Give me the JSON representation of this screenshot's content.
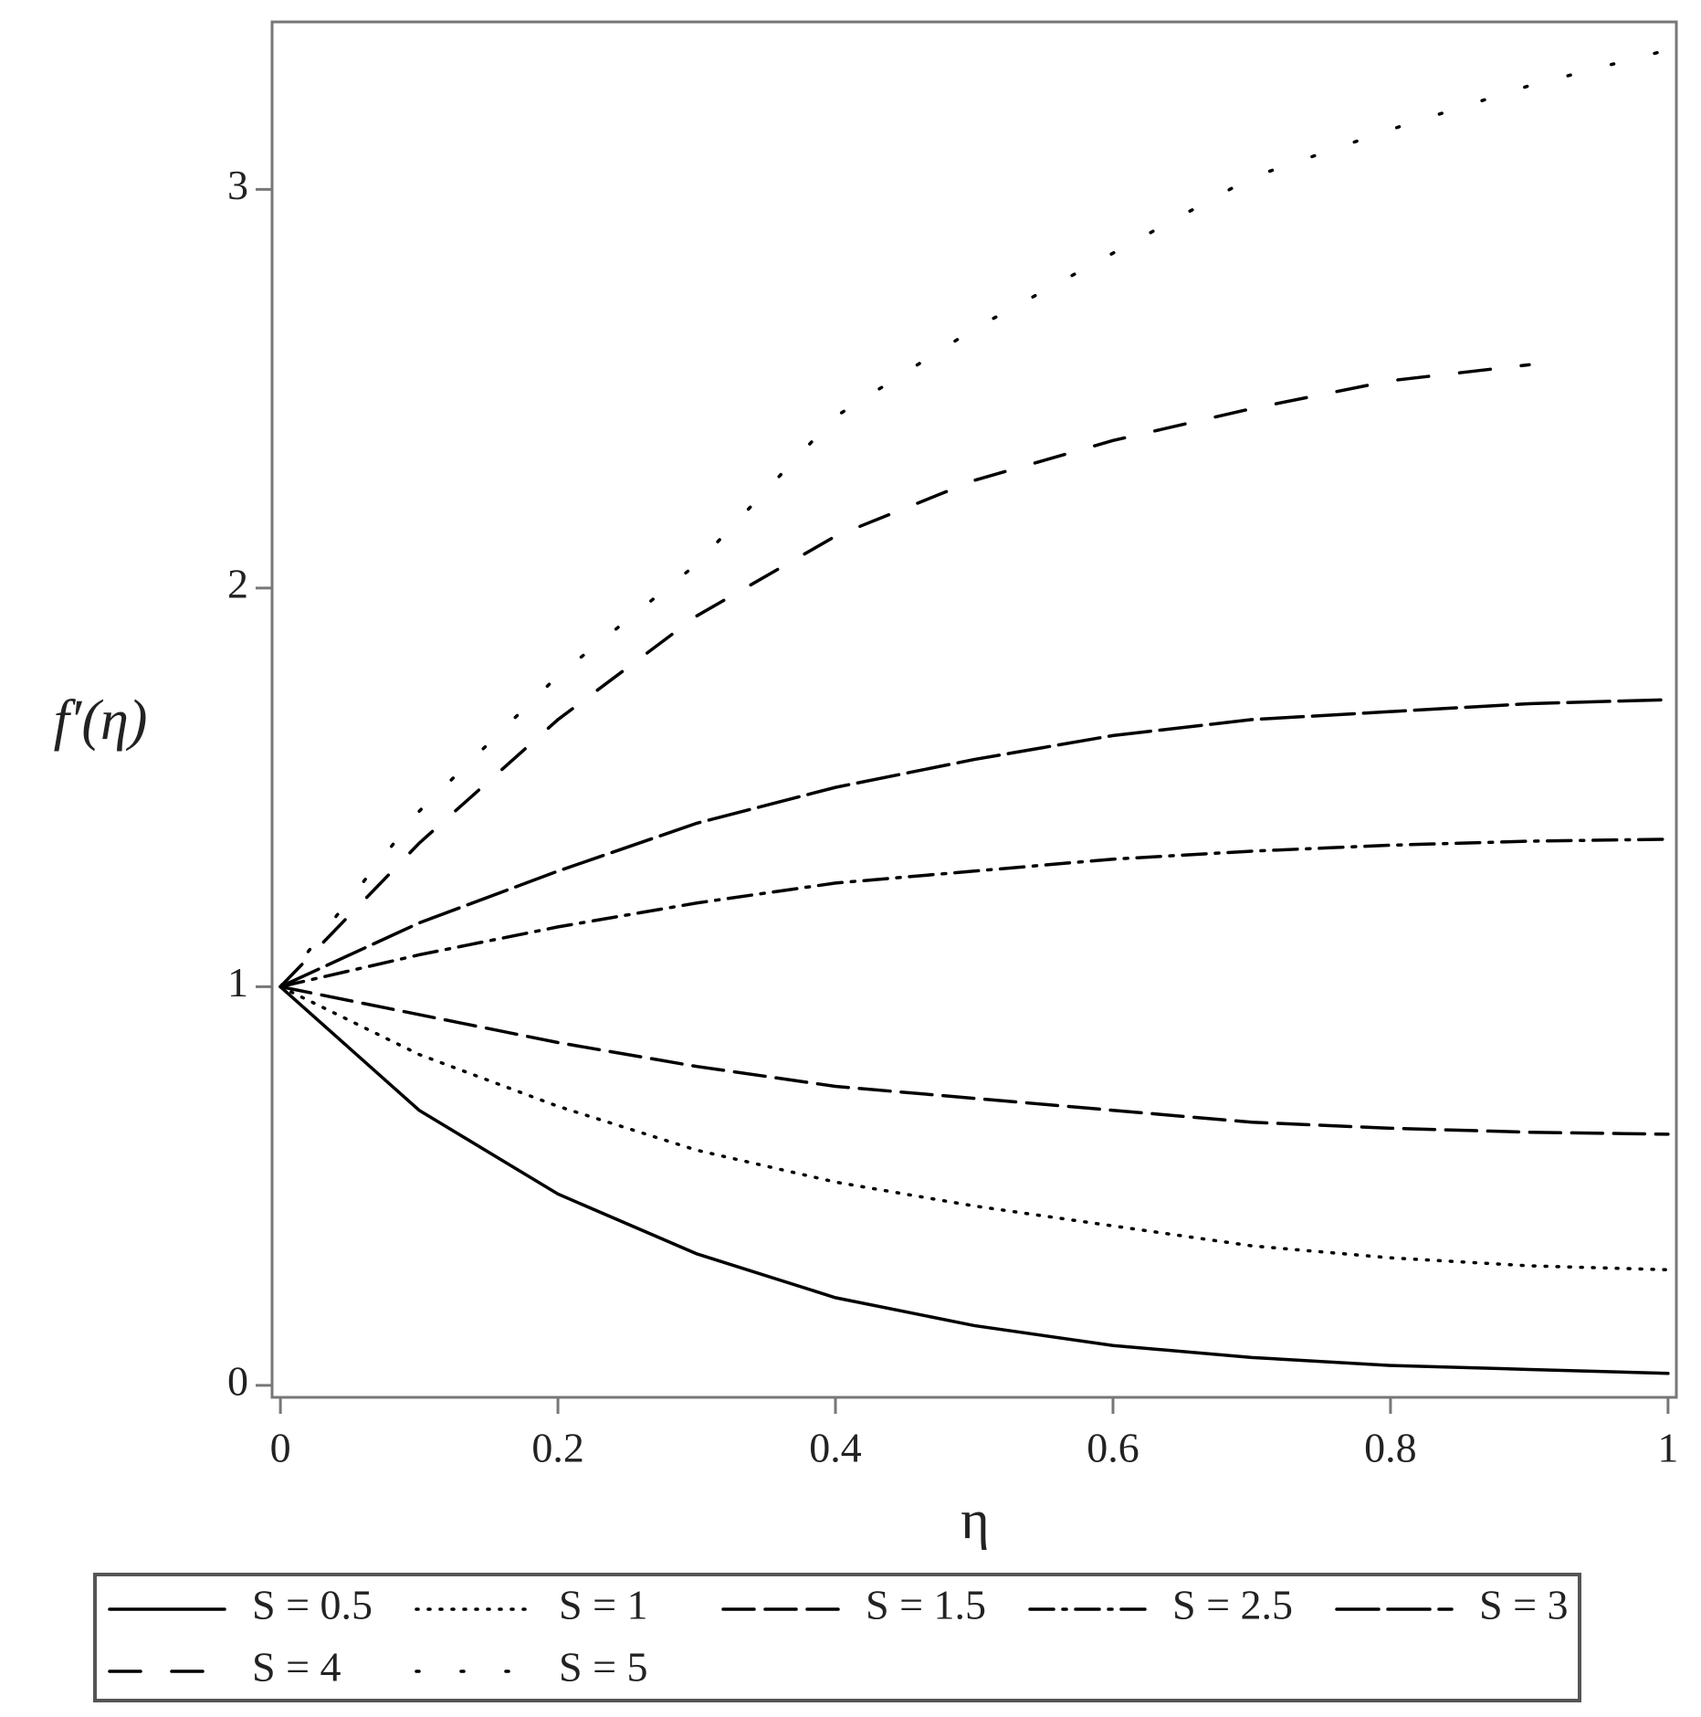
{
  "chart_data": {
    "type": "line",
    "x_label": "η",
    "y_label": "f′(η)",
    "x": [
      0,
      0.1,
      0.2,
      0.3,
      0.4,
      0.5,
      0.6,
      0.7,
      0.8,
      0.9,
      1
    ],
    "xlim": [
      -0.006,
      1.006
    ],
    "ylim": [
      -0.03,
      3.42
    ],
    "xticks": [
      0,
      0.2,
      0.4,
      0.6,
      0.8,
      1
    ],
    "yticks": [
      0,
      1,
      2,
      3
    ],
    "legend": "bottom",
    "series": [
      {
        "name": "S = 0.5",
        "color": "#000000",
        "dash": "solid",
        "values": [
          1,
          0.69,
          0.48,
          0.33,
          0.22,
          0.15,
          0.1,
          0.07,
          0.05,
          0.04,
          0.03
        ]
      },
      {
        "name": "S = 1",
        "color": "#000000",
        "dash": "dotted",
        "values": [
          1,
          0.83,
          0.7,
          0.59,
          0.51,
          0.45,
          0.4,
          0.35,
          0.32,
          0.3,
          0.29
        ]
      },
      {
        "name": "S = 1.5",
        "color": "#000000",
        "dash": "dashed",
        "values": [
          1,
          0.93,
          0.86,
          0.8,
          0.75,
          0.72,
          0.69,
          0.66,
          0.645,
          0.635,
          0.63
        ]
      },
      {
        "name": "S = 2.5",
        "color": "#000000",
        "dash": "dashdot",
        "values": [
          1,
          1.08,
          1.15,
          1.21,
          1.26,
          1.29,
          1.32,
          1.34,
          1.355,
          1.365,
          1.37
        ]
      },
      {
        "name": "S = 3",
        "color": "#000000",
        "dash": "longdash",
        "values": [
          1,
          1.16,
          1.29,
          1.41,
          1.5,
          1.57,
          1.63,
          1.67,
          1.69,
          1.71,
          1.72
        ]
      },
      {
        "name": "S = 4",
        "color": "#000000",
        "dash": "spacedash",
        "values": [
          1,
          1.36,
          1.67,
          1.93,
          2.13,
          2.27,
          2.37,
          2.45,
          2.52,
          2.56,
          null
        ]
      },
      {
        "name": "S = 5",
        "color": "#000000",
        "dash": "spacedot",
        "values": [
          1,
          1.44,
          1.78,
          2.06,
          2.43,
          2.65,
          2.84,
          3.03,
          3.15,
          3.26,
          3.35
        ]
      }
    ]
  }
}
